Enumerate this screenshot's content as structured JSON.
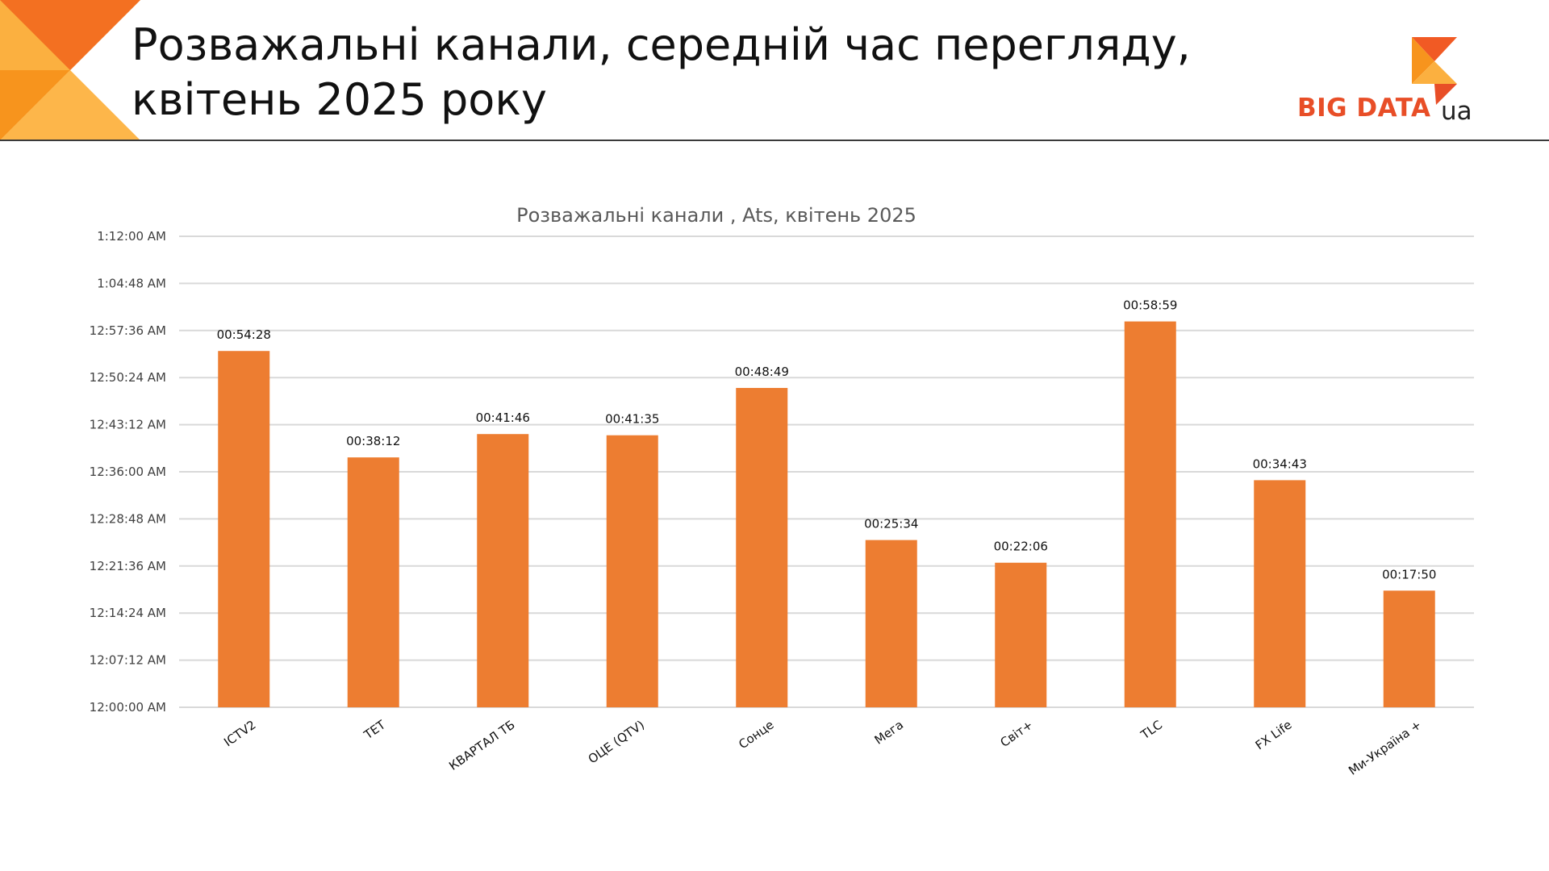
{
  "slide": {
    "title_line1": "Розважальні канали, середній час перегляду,",
    "title_line2": "квітень 2025 року"
  },
  "logo": {
    "text": "BIG DATA",
    "suffix": "ua"
  },
  "colors": {
    "bar": "#ed7d31",
    "grid": "#d9d9d9",
    "accent_dark": "#f15a24",
    "accent_light": "#fbb040"
  },
  "chart_data": {
    "type": "bar",
    "title": "Розважальні канали , Ats, квітень 2025",
    "xlabel": "",
    "ylabel": "",
    "categories": [
      "ICTV2",
      "ТЕТ",
      "КВАРТАЛ ТБ",
      "ОЦЕ (QTV)",
      "Сонце",
      "Мега",
      "Світ+",
      "TLC",
      "FX Life",
      "Ми-Україна +"
    ],
    "values": [
      3268,
      2292,
      2506,
      2495,
      2929,
      1534,
      1326,
      3539,
      2083,
      1070
    ],
    "value_labels": [
      "00:54:28",
      "00:38:12",
      "00:41:46",
      "00:41:35",
      "00:48:49",
      "00:25:34",
      "00:22:06",
      "00:58:59",
      "00:34:43",
      "00:17:50"
    ],
    "value_unit": "seconds",
    "ylim": [
      0,
      4320
    ],
    "y_ticks": [
      0,
      432,
      864,
      1296,
      1728,
      2160,
      2592,
      3024,
      3456,
      3888,
      4320
    ],
    "y_tick_labels": [
      "12:00:00 AM",
      "12:07:12 AM",
      "12:14:24 AM",
      "12:21:36 AM",
      "12:28:48 AM",
      "12:36:00 AM",
      "12:43:12 AM",
      "12:50:24 AM",
      "12:57:36 AM",
      "1:04:48 AM",
      "1:12:00 AM"
    ],
    "grid": true,
    "legend": "none"
  }
}
